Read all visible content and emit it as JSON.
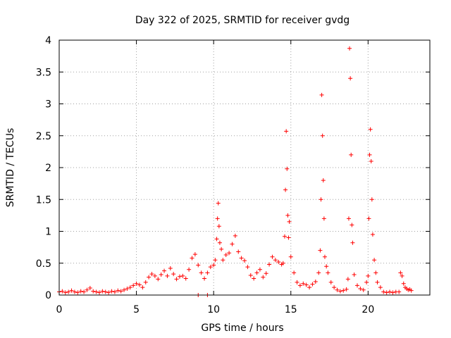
{
  "chart_data": {
    "type": "scatter",
    "title": "Day 322 of 2025, SRMTID for receiver gvdg",
    "xlabel": "GPS time / hours",
    "ylabel": "SRMTID / TECUs",
    "xlim": [
      0,
      24
    ],
    "ylim": [
      0,
      4
    ],
    "xticks": [
      0,
      5,
      10,
      15,
      20
    ],
    "xtick_labels": [
      "0",
      "5",
      "10",
      "15",
      "20"
    ],
    "yticks": [
      0,
      0.5,
      1,
      1.5,
      2,
      2.5,
      3,
      3.5,
      4
    ],
    "ytick_labels": [
      "0",
      "0.5",
      "1",
      "1.5",
      "2",
      "2.5",
      "3",
      "3.5",
      "4"
    ],
    "grid": true,
    "marker": "+",
    "color": "#ff0000",
    "series": [
      {
        "name": "SRMTID",
        "x": [
          0.0,
          0.2,
          0.4,
          0.6,
          0.8,
          1.0,
          1.2,
          1.4,
          1.6,
          1.8,
          2.0,
          2.2,
          2.4,
          2.6,
          2.8,
          3.0,
          3.2,
          3.4,
          3.6,
          3.8,
          4.0,
          4.2,
          4.4,
          4.6,
          4.8,
          5.0,
          5.2,
          5.4,
          5.6,
          5.8,
          6.0,
          6.2,
          6.4,
          6.6,
          6.8,
          7.0,
          7.2,
          7.4,
          7.6,
          7.8,
          8.0,
          8.2,
          8.4,
          8.6,
          8.8,
          9.0,
          9.2,
          9.4,
          9.6,
          9.8,
          10.0,
          10.1,
          10.2,
          10.25,
          10.3,
          10.35,
          10.4,
          10.5,
          10.6,
          10.8,
          11.0,
          11.2,
          11.4,
          11.6,
          11.8,
          12.0,
          12.2,
          12.4,
          12.6,
          12.8,
          13.0,
          13.2,
          13.4,
          13.6,
          13.8,
          14.0,
          14.2,
          14.4,
          14.5,
          14.6,
          14.65,
          14.7,
          14.75,
          14.8,
          14.85,
          14.9,
          15.0,
          15.2,
          15.4,
          15.6,
          15.8,
          16.0,
          16.2,
          16.4,
          16.6,
          16.8,
          16.9,
          16.95,
          17.0,
          17.05,
          17.1,
          17.15,
          17.2,
          17.3,
          17.4,
          17.6,
          17.8,
          18.0,
          18.2,
          18.4,
          18.6,
          18.7,
          18.75,
          18.8,
          18.85,
          18.9,
          18.95,
          19.0,
          19.1,
          19.3,
          19.5,
          19.7,
          19.9,
          20.0,
          20.05,
          20.1,
          20.15,
          20.2,
          20.25,
          20.3,
          20.4,
          20.5,
          20.6,
          20.8,
          21.0,
          21.2,
          21.4,
          21.6,
          21.8,
          22.0,
          22.1,
          22.2,
          22.3,
          22.4,
          22.5,
          22.6,
          22.7,
          22.8,
          9.0,
          9.6
        ],
        "y": [
          0.05,
          0.06,
          0.04,
          0.05,
          0.07,
          0.05,
          0.04,
          0.06,
          0.05,
          0.08,
          0.11,
          0.06,
          0.05,
          0.04,
          0.06,
          0.05,
          0.04,
          0.06,
          0.05,
          0.07,
          0.06,
          0.08,
          0.1,
          0.12,
          0.15,
          0.18,
          0.16,
          0.12,
          0.2,
          0.28,
          0.33,
          0.3,
          0.25,
          0.32,
          0.38,
          0.3,
          0.42,
          0.33,
          0.25,
          0.29,
          0.3,
          0.26,
          0.4,
          0.58,
          0.64,
          0.47,
          0.35,
          0.26,
          0.35,
          0.44,
          0.47,
          0.55,
          0.88,
          1.2,
          1.44,
          1.08,
          0.82,
          0.72,
          0.55,
          0.63,
          0.66,
          0.8,
          0.93,
          0.68,
          0.58,
          0.54,
          0.44,
          0.31,
          0.26,
          0.35,
          0.4,
          0.28,
          0.34,
          0.48,
          0.6,
          0.55,
          0.52,
          0.48,
          0.5,
          0.92,
          1.65,
          2.57,
          1.98,
          1.25,
          0.9,
          1.15,
          0.6,
          0.35,
          0.2,
          0.15,
          0.18,
          0.16,
          0.12,
          0.17,
          0.21,
          0.35,
          0.7,
          1.5,
          3.14,
          2.5,
          1.8,
          1.2,
          0.6,
          0.45,
          0.35,
          0.2,
          0.12,
          0.08,
          0.06,
          0.07,
          0.09,
          0.25,
          1.2,
          3.87,
          3.4,
          2.2,
          1.1,
          0.82,
          0.32,
          0.15,
          0.1,
          0.08,
          0.2,
          0.3,
          1.2,
          2.2,
          2.6,
          2.1,
          1.5,
          0.95,
          0.55,
          0.35,
          0.2,
          0.12,
          0.05,
          0.04,
          0.05,
          0.04,
          0.05,
          0.05,
          0.35,
          0.3,
          0.18,
          0.12,
          0.1,
          0.08,
          0.09,
          0.07,
          0.0,
          0.0
        ]
      }
    ]
  }
}
